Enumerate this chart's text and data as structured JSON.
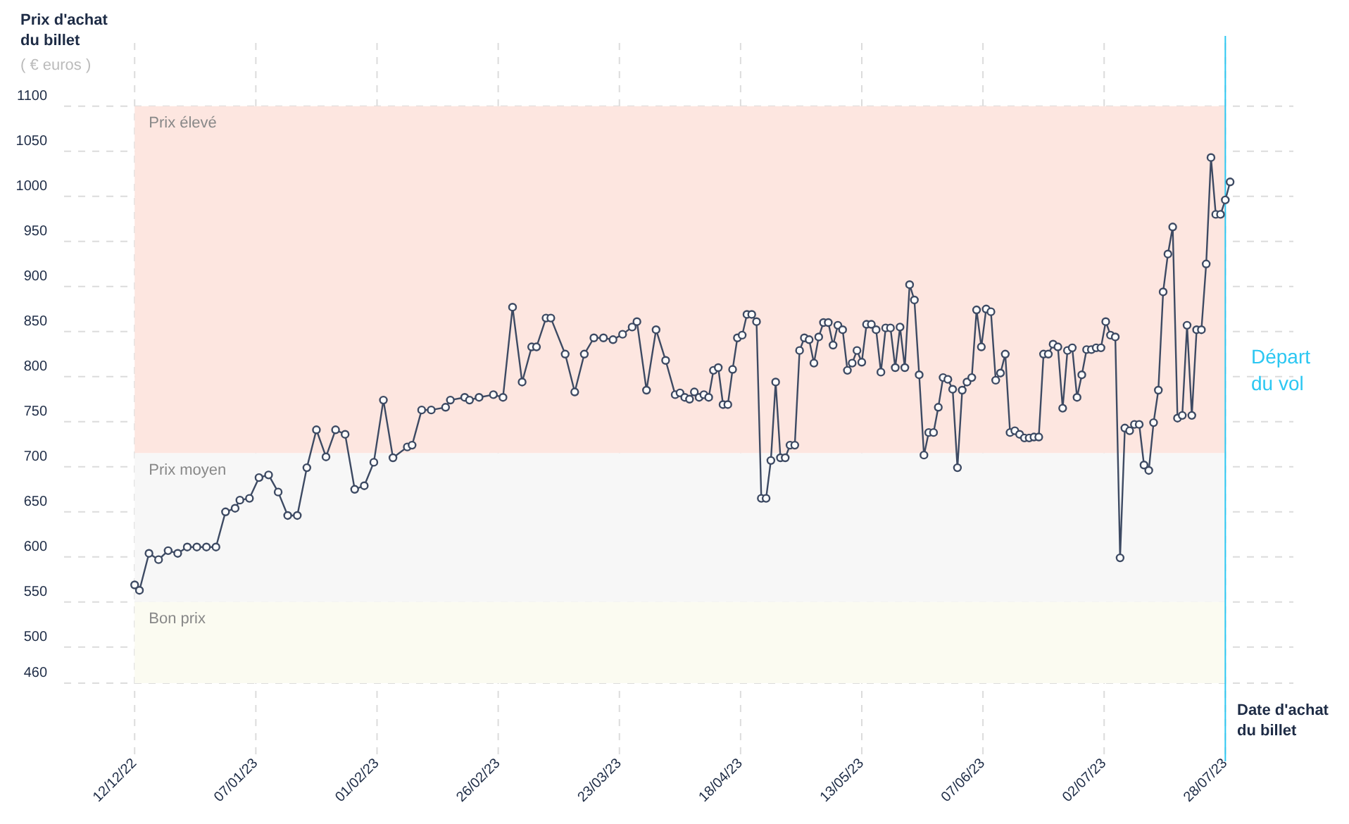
{
  "chart_data": {
    "type": "line",
    "ylabel": "Prix d'achat du billet",
    "xlabel": "Date d'achat du billet",
    "annotations": [
      "( € euros )"
    ],
    "x": [
      "2022-12-12",
      "2022-12-13",
      "2022-12-15",
      "2022-12-17",
      "2022-12-19",
      "2022-12-21",
      "2022-12-23",
      "2022-12-25",
      "2022-12-27",
      "2022-12-29",
      "2022-12-31",
      "2023-01-02",
      "2023-01-03",
      "2023-01-05",
      "2023-01-07",
      "2023-01-09",
      "2023-01-11",
      "2023-01-13",
      "2023-01-15",
      "2023-01-17",
      "2023-01-19",
      "2023-01-21",
      "2023-01-23",
      "2023-01-25",
      "2023-01-27",
      "2023-01-29",
      "2023-01-31",
      "2023-02-02",
      "2023-02-04",
      "2023-02-07",
      "2023-02-08",
      "2023-02-10",
      "2023-02-12",
      "2023-02-15",
      "2023-02-16",
      "2023-02-19",
      "2023-02-20",
      "2023-02-22",
      "2023-02-25",
      "2023-02-27",
      "2023-03-01",
      "2023-03-03",
      "2023-03-05",
      "2023-03-06",
      "2023-03-08",
      "2023-03-09",
      "2023-03-12",
      "2023-03-14",
      "2023-03-16",
      "2023-03-18",
      "2023-03-20",
      "2023-03-22",
      "2023-03-24",
      "2023-03-26",
      "2023-03-27",
      "2023-03-29",
      "2023-03-31",
      "2023-04-02",
      "2023-04-04",
      "2023-04-05",
      "2023-04-06",
      "2023-04-07",
      "2023-04-08",
      "2023-04-09",
      "2023-04-10",
      "2023-04-11",
      "2023-04-12",
      "2023-04-13",
      "2023-04-14",
      "2023-04-15",
      "2023-04-16",
      "2023-04-17",
      "2023-04-18",
      "2023-04-19",
      "2023-04-20",
      "2023-04-21",
      "2023-04-22",
      "2023-04-23",
      "2023-04-24",
      "2023-04-25",
      "2023-04-26",
      "2023-04-27",
      "2023-04-28",
      "2023-04-29",
      "2023-04-30",
      "2023-05-01",
      "2023-05-02",
      "2023-05-03",
      "2023-05-04",
      "2023-05-05",
      "2023-05-06",
      "2023-05-07",
      "2023-05-08",
      "2023-05-09",
      "2023-05-10",
      "2023-05-11",
      "2023-05-12",
      "2023-05-13",
      "2023-05-14",
      "2023-05-15",
      "2023-05-16",
      "2023-05-17",
      "2023-05-18",
      "2023-05-19",
      "2023-05-20",
      "2023-05-21",
      "2023-05-22",
      "2023-05-23",
      "2023-05-24",
      "2023-05-25",
      "2023-05-26",
      "2023-05-27",
      "2023-05-28",
      "2023-05-29",
      "2023-05-30",
      "2023-05-31",
      "2023-06-01",
      "2023-06-02",
      "2023-06-03",
      "2023-06-04",
      "2023-06-05",
      "2023-06-06",
      "2023-06-07",
      "2023-06-08",
      "2023-06-09",
      "2023-06-10",
      "2023-06-11",
      "2023-06-12",
      "2023-06-13",
      "2023-06-14",
      "2023-06-15",
      "2023-06-16",
      "2023-06-17",
      "2023-06-18",
      "2023-06-19",
      "2023-06-20",
      "2023-06-21",
      "2023-06-22",
      "2023-06-23",
      "2023-06-24",
      "2023-06-25",
      "2023-06-26",
      "2023-06-27",
      "2023-06-28",
      "2023-06-29",
      "2023-06-30",
      "2023-07-01",
      "2023-07-02",
      "2023-07-03",
      "2023-07-04",
      "2023-07-05",
      "2023-07-06",
      "2023-07-07",
      "2023-07-08",
      "2023-07-09",
      "2023-07-10",
      "2023-07-11",
      "2023-07-12",
      "2023-07-13",
      "2023-07-14",
      "2023-07-15",
      "2023-07-16",
      "2023-07-17",
      "2023-07-18",
      "2023-07-19",
      "2023-07-20",
      "2023-07-21",
      "2023-07-22",
      "2023-07-23",
      "2023-07-24",
      "2023-07-25",
      "2023-07-26",
      "2023-07-27",
      "2023-07-28",
      "2023-07-29"
    ],
    "series": [
      {
        "color": "#3d4a63",
        "values": [
          569,
          563,
          604,
          597,
          607,
          604,
          611,
          611,
          611,
          611,
          650,
          654,
          663,
          665,
          688,
          691,
          672,
          646,
          646,
          699,
          741,
          711,
          741,
          736,
          675,
          679,
          705,
          774,
          710,
          722,
          724,
          763,
          763,
          766,
          774,
          777,
          774,
          777,
          780,
          777,
          877,
          794,
          833,
          833,
          865,
          865,
          825,
          783,
          825,
          843,
          843,
          841,
          847,
          855,
          861,
          785,
          852,
          818,
          780,
          782,
          777,
          775,
          783,
          777,
          780,
          777,
          807,
          810,
          769,
          769,
          808,
          843,
          846,
          869,
          869,
          861,
          665,
          665,
          707,
          794,
          710,
          710,
          724,
          724,
          829,
          843,
          841,
          815,
          844,
          860,
          860,
          835,
          857,
          852,
          807,
          815,
          829,
          816,
          858,
          858,
          852,
          805,
          854,
          854,
          810,
          855,
          810,
          902,
          885,
          802,
          713,
          738,
          738,
          766,
          799,
          797,
          786,
          699,
          785,
          794,
          799,
          874,
          833,
          875,
          872,
          796,
          804,
          825,
          738,
          740,
          736,
          732,
          732,
          733,
          733,
          825,
          825,
          836,
          833,
          765,
          829,
          832,
          777,
          802,
          830,
          830,
          832,
          832,
          861,
          846,
          844,
          599,
          743,
          740,
          747,
          747,
          702,
          696,
          749,
          785,
          894,
          936,
          966,
          754,
          757,
          857,
          757,
          852,
          852,
          925,
          1043,
          980,
          980,
          996,
          1016
        ]
      }
    ],
    "xlim": [
      "2022-11-14",
      "2023-08-23"
    ],
    "xticks": [
      {
        "value": "2022-12-12T00:00",
        "label": "12/12/22"
      },
      {
        "value": "2023-01-06T08:00",
        "label": "07/01/23"
      },
      {
        "value": "2023-01-31T16:00",
        "label": "01/02/23"
      },
      {
        "value": "2023-02-26T00:00",
        "label": "26/02/23"
      },
      {
        "value": "2023-03-23T08:00",
        "label": "23/03/23"
      },
      {
        "value": "2023-04-17T16:00",
        "label": "18/04/23"
      },
      {
        "value": "2023-05-13T00:00",
        "label": "13/05/23"
      },
      {
        "value": "2023-06-07T08:00",
        "label": "07/06/23"
      },
      {
        "value": "2023-07-02T16:00",
        "label": "02/07/23"
      },
      {
        "value": "2023-07-28T00:00",
        "label": "28/07/23"
      }
    ],
    "ylim": [
      303,
      1217
    ],
    "yticks": [
      460,
      500,
      550,
      600,
      650,
      700,
      750,
      800,
      850,
      900,
      950,
      1000,
      1050,
      1100
    ],
    "bands": [
      {
        "axis": "y",
        "from": 715,
        "to": 1100,
        "label": "Prix élevé",
        "color": "#fde6e0"
      },
      {
        "axis": "y",
        "from": 550,
        "to": 715,
        "label": "Prix moyen",
        "color": "#f7f7f7"
      },
      {
        "axis": "y",
        "from": 460,
        "to": 550,
        "label": "Bon prix",
        "color": "#fbfbf1"
      }
    ],
    "ref_lines": [
      {
        "axis": "x",
        "value": "2023-07-28",
        "label": "Départ du vol",
        "color": "#2cc7f2",
        "line_style": "solid"
      }
    ],
    "grid": true,
    "marker": "circle",
    "line_style": "solid"
  }
}
